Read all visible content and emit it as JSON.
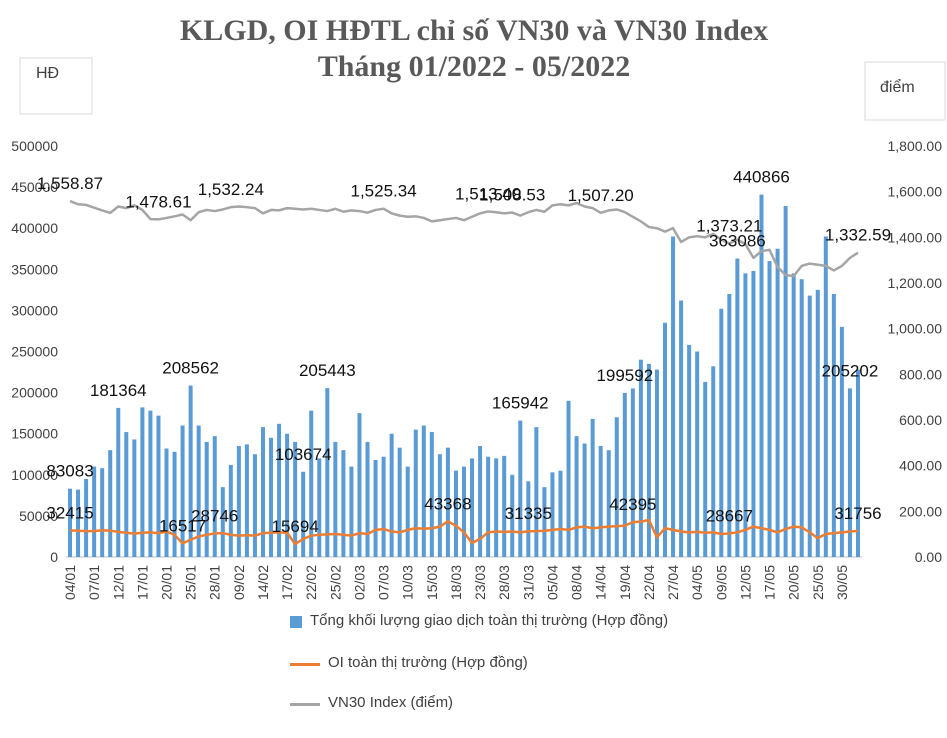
{
  "chart_data": {
    "type": "bar-line",
    "title": "KLGD, OI HĐTL chỉ số VN30 và VN30 Index",
    "subtitle": "Tháng 01/2022 - 05/2022",
    "y_label": "HĐ",
    "y2_label": "điểm",
    "categories": [
      "04/01",
      null,
      null,
      "07/01",
      null,
      null,
      "12/01",
      null,
      null,
      "17/01",
      null,
      null,
      "20/01",
      null,
      null,
      "25/01",
      null,
      null,
      "28/01",
      null,
      null,
      "09/02",
      null,
      null,
      "14/02",
      null,
      null,
      "17/02",
      null,
      null,
      "22/02",
      null,
      null,
      "25/02",
      null,
      null,
      "02/03",
      null,
      null,
      "07/03",
      null,
      null,
      "10/03",
      null,
      null,
      "15/03",
      null,
      null,
      "18/03",
      null,
      null,
      "23/03",
      null,
      null,
      "28/03",
      null,
      null,
      "31/03",
      null,
      null,
      "05/04",
      null,
      null,
      "08/04",
      null,
      null,
      "14/04",
      null,
      null,
      "19/04",
      null,
      null,
      "22/04",
      null,
      null,
      "27/04",
      null,
      null,
      "04/05",
      null,
      null,
      "09/05",
      null,
      null,
      "12/05",
      null,
      null,
      "17/05",
      null,
      null,
      "20/05",
      null,
      null,
      "25/05",
      null,
      null,
      "30/05",
      null,
      null
    ],
    "ylim": [
      0,
      500000
    ],
    "yticks": [
      0,
      50000,
      100000,
      150000,
      200000,
      250000,
      300000,
      350000,
      400000,
      450000,
      500000
    ],
    "y2lim": [
      0,
      1800
    ],
    "y2ticks": [
      {
        "value": 0,
        "label": "0.00"
      },
      {
        "value": 200,
        "label": "200.00"
      },
      {
        "value": 400,
        "label": "400.00"
      },
      {
        "value": 600,
        "label": "600.00"
      },
      {
        "value": 800,
        "label": "800.00"
      },
      {
        "value": 1000,
        "label": "1,000.00"
      },
      {
        "value": 1200,
        "label": "1,200.00"
      },
      {
        "value": 1400,
        "label": "1,400.00"
      },
      {
        "value": 1600,
        "label": "1,600.00"
      },
      {
        "value": 1800,
        "label": "1,800.00"
      }
    ],
    "grid": false,
    "series": [
      {
        "name": "Tổng khối lượng giao dịch toàn thị trường (Hợp đồng)",
        "type": "bar",
        "color": "#5b9bd5",
        "values": [
          83083,
          82000,
          95000,
          110000,
          108000,
          130000,
          181364,
          152000,
          143000,
          182000,
          178000,
          172000,
          132000,
          128000,
          160000,
          208562,
          160000,
          140000,
          147000,
          85000,
          112000,
          135000,
          137000,
          125000,
          158000,
          145000,
          162000,
          150000,
          140000,
          103674,
          178000,
          120000,
          205443,
          140000,
          130000,
          110000,
          175000,
          140000,
          118000,
          122000,
          150000,
          133000,
          110000,
          155000,
          160000,
          152000,
          125000,
          133000,
          105000,
          110000,
          120000,
          135000,
          122000,
          120000,
          123000,
          100000,
          165942,
          92000,
          158000,
          85000,
          103000,
          105000,
          190000,
          147000,
          138000,
          168000,
          135000,
          130000,
          170000,
          199592,
          205000,
          240000,
          235000,
          228000,
          285000,
          390000,
          312000,
          258000,
          250000,
          213000,
          232000,
          302000,
          320000,
          363086,
          345000,
          348000,
          440866,
          360000,
          375000,
          427000,
          345000,
          338000,
          318000,
          325000,
          390000,
          320000,
          280000,
          205202,
          228000
        ],
        "value_labels": [
          "83083",
          null,
          null,
          null,
          null,
          null,
          "181364",
          null,
          null,
          null,
          null,
          null,
          null,
          null,
          null,
          "208562",
          null,
          null,
          null,
          null,
          null,
          null,
          null,
          null,
          null,
          null,
          null,
          null,
          null,
          "103674",
          null,
          null,
          "205443",
          null,
          null,
          null,
          null,
          null,
          null,
          null,
          null,
          null,
          null,
          null,
          null,
          null,
          null,
          null,
          null,
          null,
          null,
          null,
          null,
          null,
          null,
          null,
          "165942",
          null,
          null,
          null,
          null,
          null,
          null,
          null,
          null,
          null,
          null,
          null,
          null,
          "199592",
          null,
          null,
          null,
          null,
          null,
          null,
          null,
          null,
          null,
          null,
          null,
          null,
          null,
          "363086",
          null,
          null,
          "440866",
          null,
          null,
          null,
          null,
          null,
          null,
          null,
          null,
          null,
          null,
          "205202",
          null
        ]
      },
      {
        "name": "OI toàn thị trường (Hợp đồng)",
        "type": "line",
        "color": "#ed7d31",
        "values": [
          32415,
          32000,
          31500,
          31500,
          32500,
          32000,
          30500,
          29500,
          28500,
          29500,
          30000,
          29000,
          31000,
          27000,
          16517,
          21000,
          25000,
          27000,
          28746,
          29000,
          27000,
          26000,
          26500,
          26000,
          29000,
          29500,
          30000,
          29500,
          15694,
          22000,
          26000,
          27000,
          27500,
          28000,
          27000,
          26000,
          29000,
          28000,
          33000,
          34000,
          31000,
          30000,
          33000,
          35000,
          34500,
          35000,
          37000,
          43368,
          38000,
          30000,
          17000,
          22000,
          30000,
          31000,
          30500,
          31000,
          30000,
          31335,
          31500,
          32000,
          33000,
          34000,
          33000,
          36000,
          37000,
          35000,
          36000,
          37000,
          37500,
          38000,
          42395,
          43000,
          45000,
          24000,
          35000,
          33000,
          31000,
          30000,
          30500,
          29500,
          30000,
          28000,
          28667,
          30000,
          33000,
          37000,
          35000,
          33000,
          30000,
          34000,
          37000,
          36000,
          30000,
          23000,
          28000,
          29000,
          30000,
          31000,
          31756
        ],
        "value_labels": [
          "32415",
          null,
          null,
          null,
          null,
          null,
          null,
          null,
          null,
          null,
          null,
          null,
          null,
          null,
          "16517",
          null,
          null,
          null,
          "28746",
          null,
          null,
          null,
          null,
          null,
          null,
          null,
          null,
          null,
          "15694",
          null,
          null,
          null,
          null,
          null,
          null,
          null,
          null,
          null,
          null,
          null,
          null,
          null,
          null,
          null,
          null,
          null,
          null,
          "43368",
          null,
          null,
          null,
          null,
          null,
          null,
          null,
          null,
          null,
          "31335",
          null,
          null,
          null,
          null,
          null,
          null,
          null,
          null,
          null,
          null,
          null,
          null,
          "42395",
          null,
          null,
          null,
          null,
          null,
          null,
          null,
          null,
          null,
          null,
          null,
          "28667",
          null,
          null,
          null,
          null,
          null,
          null,
          null,
          null,
          null,
          null,
          null,
          null,
          null,
          null,
          null,
          "31756"
        ]
      },
      {
        "name": "VN30 Index (điểm)",
        "type": "line",
        "axis": "y2",
        "color": "#a5a5a5",
        "values": [
          1558.87,
          1545,
          1542,
          1530,
          1518,
          1507,
          1535,
          1528,
          1540,
          1520,
          1480,
          1478.61,
          1485,
          1492,
          1500,
          1475,
          1510,
          1520,
          1515,
          1522,
          1532.24,
          1535,
          1532,
          1528,
          1505,
          1520,
          1518,
          1528,
          1525,
          1522,
          1525,
          1520,
          1515,
          1525,
          1512,
          1518,
          1515,
          1508,
          1520,
          1525.34,
          1505,
          1495,
          1490,
          1492,
          1485,
          1470,
          1475,
          1480,
          1485,
          1475,
          1490,
          1505,
          1513.4,
          1510,
          1505,
          1508.53,
          1495,
          1510,
          1520,
          1512,
          1540,
          1545,
          1540,
          1550,
          1535,
          1528,
          1507.2,
          1518,
          1522,
          1510,
          1490,
          1470,
          1445,
          1440,
          1425,
          1440,
          1380,
          1400,
          1405,
          1400,
          1415,
          1390,
          1373.21,
          1390,
          1370,
          1310,
          1340,
          1345,
          1270,
          1235,
          1230,
          1275,
          1285,
          1280,
          1275,
          1255,
          1275,
          1310,
          1332.59
        ],
        "value_labels": [
          "1,558.87",
          null,
          null,
          null,
          null,
          null,
          null,
          null,
          null,
          null,
          null,
          "1,478.61",
          null,
          null,
          null,
          null,
          null,
          null,
          null,
          null,
          "1,532.24",
          null,
          null,
          null,
          null,
          null,
          null,
          null,
          null,
          null,
          null,
          null,
          null,
          null,
          null,
          null,
          null,
          null,
          null,
          "1,525.34",
          null,
          null,
          null,
          null,
          null,
          null,
          null,
          null,
          null,
          null,
          null,
          null,
          "1,513.40",
          null,
          null,
          "1,508.53",
          null,
          null,
          null,
          null,
          null,
          null,
          null,
          null,
          null,
          null,
          "1,507.20",
          null,
          null,
          null,
          null,
          null,
          null,
          null,
          null,
          null,
          null,
          null,
          null,
          null,
          null,
          null,
          "1,373.21",
          null,
          null,
          null,
          null,
          null,
          null,
          null,
          null,
          null,
          null,
          null,
          null,
          null,
          null,
          null,
          "1,332.59"
        ]
      }
    ]
  }
}
